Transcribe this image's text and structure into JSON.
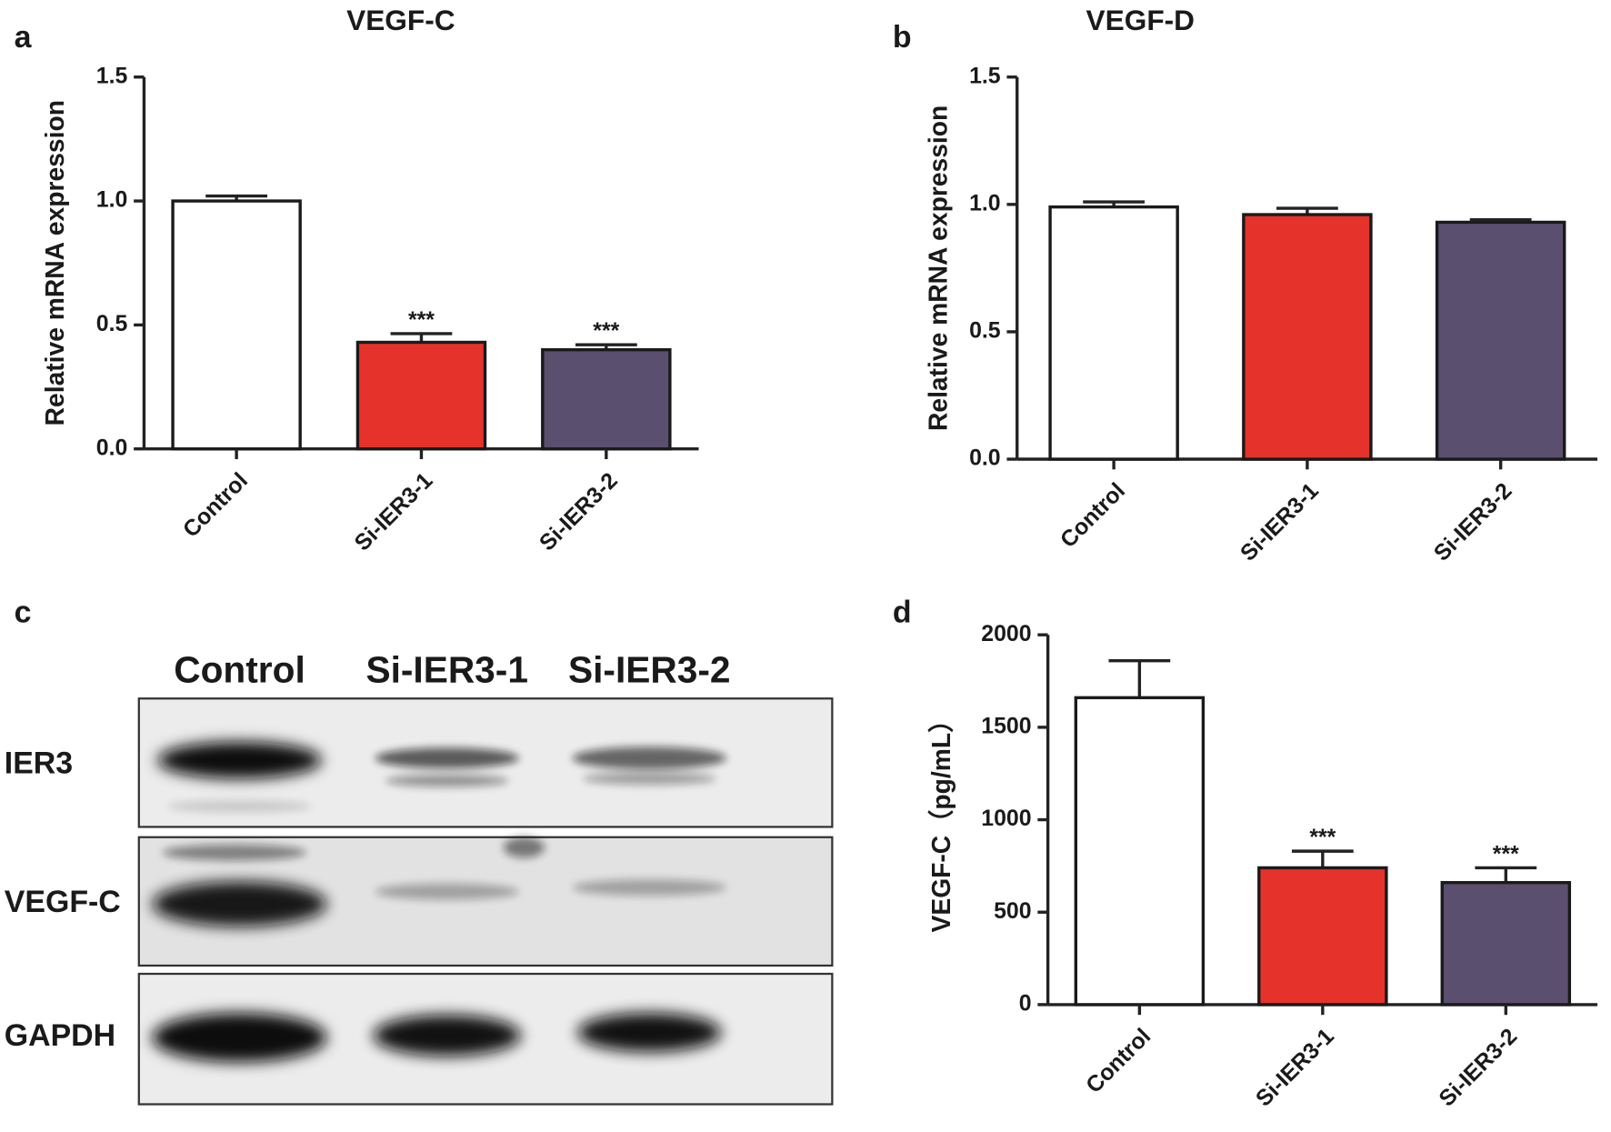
{
  "chart_data": [
    {
      "type": "bar",
      "panel": "a",
      "title": "VEGF-C",
      "y_label": "Relative mRNA expression",
      "categories": [
        "Control",
        "Si-IER3-1",
        "Si-IER3-2"
      ],
      "values": [
        1.0,
        0.43,
        0.4
      ],
      "errors": [
        0.02,
        0.035,
        0.02
      ],
      "significance": [
        null,
        "***",
        "***"
      ],
      "colors": [
        "#ffffff",
        "#e5322a",
        "#5b4f6f"
      ],
      "ylim": [
        0,
        1.5
      ],
      "yticks": [
        {
          "value": 0,
          "label": "0.0"
        },
        0.5,
        {
          "value": 1,
          "label": "1.0"
        },
        1.5
      ]
    },
    {
      "type": "bar",
      "panel": "b",
      "title": "VEGF-D",
      "y_label": "Relative mRNA expression",
      "categories": [
        "Control",
        "Si-IER3-1",
        "Si-IER3-2"
      ],
      "values": [
        0.99,
        0.96,
        0.93
      ],
      "errors": [
        0.02,
        0.025,
        0.01
      ],
      "colors": [
        "#ffffff",
        "#e5322a",
        "#5b4f6f"
      ],
      "ylim": [
        0,
        1.5
      ],
      "yticks": [
        {
          "value": 0,
          "label": "0.0"
        },
        0.5,
        {
          "value": 1,
          "label": "1.0"
        },
        1.5
      ]
    },
    {
      "type": "bar",
      "panel": "d",
      "y_label": "VEGF-C（pg/mL）",
      "categories": [
        "Control",
        "Si-IER3-1",
        "Si-IER3-2"
      ],
      "values": [
        1660,
        740,
        660
      ],
      "errors": [
        200,
        90,
        80
      ],
      "significance": [
        null,
        "***",
        "***"
      ],
      "colors": [
        "#ffffff",
        "#e5322a",
        "#5b4f6f"
      ],
      "ylim": [
        0,
        2000
      ],
      "yticks": [
        0,
        500,
        1000,
        1500,
        2000
      ]
    }
  ],
  "blot": {
    "panel": "c",
    "lanes": [
      "Control",
      "Si-IER3-1",
      "Si-IER3-2"
    ],
    "rows": [
      "IER3",
      "VEGF-C",
      "GAPDH"
    ]
  }
}
